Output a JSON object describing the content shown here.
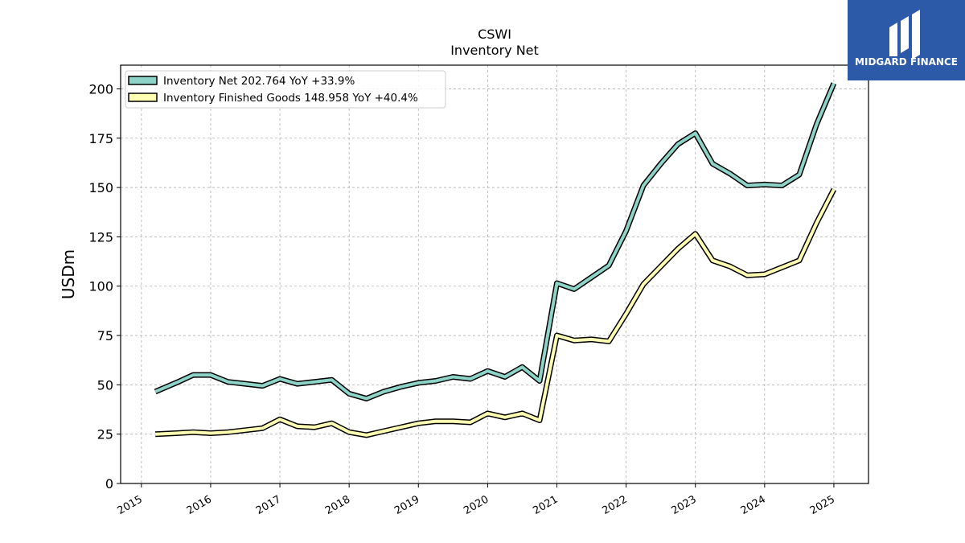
{
  "colors": {
    "net": "#8dd3c7",
    "finished": "#ffffb3",
    "outline": "#000000",
    "logo_bg": "#2c5aa8"
  },
  "logo": {
    "text": "MIDGARD FINANCE"
  },
  "chart_data": {
    "type": "line",
    "title": "CSWI",
    "subtitle": "Inventory Net",
    "ylabel": "USDm",
    "xlabel": "",
    "ylim": [
      0,
      212
    ],
    "xlim": [
      2014.7,
      2025.5
    ],
    "yticks": [
      0,
      25,
      50,
      75,
      100,
      125,
      150,
      175,
      200
    ],
    "xticks": [
      2015,
      2016,
      2017,
      2018,
      2019,
      2020,
      2021,
      2022,
      2023,
      2024,
      2025
    ],
    "grid": true,
    "legend_position": "top-left",
    "legend": [
      "Inventory Net  202.764 YoY +33.9%",
      "Inventory Finished Goods  148.958 YoY +40.4%"
    ],
    "x": [
      2015.2,
      2015.5,
      2015.75,
      2016.0,
      2016.25,
      2016.5,
      2016.75,
      2017.0,
      2017.25,
      2017.5,
      2017.75,
      2018.0,
      2018.25,
      2018.5,
      2018.75,
      2019.0,
      2019.25,
      2019.5,
      2019.75,
      2020.0,
      2020.25,
      2020.5,
      2020.75,
      2021.0,
      2021.25,
      2021.5,
      2021.75,
      2022.0,
      2022.25,
      2022.5,
      2022.75,
      2023.0,
      2023.25,
      2023.5,
      2023.75,
      2024.0,
      2024.25,
      2024.5,
      2024.75,
      2025.0
    ],
    "series": [
      {
        "name": "Inventory Net  202.764 YoY +33.9%",
        "values": [
          46.5,
          51,
          55,
          55,
          51.5,
          50.5,
          49.5,
          53,
          50.5,
          51.5,
          52.5,
          45.5,
          43,
          46.5,
          49,
          51,
          52,
          54,
          53,
          57,
          54,
          59,
          52,
          101.5,
          98.5,
          104.5,
          110.5,
          128,
          151,
          162,
          172,
          177.5,
          162,
          157,
          151,
          151.5,
          151,
          156.5,
          182,
          202.8
        ]
      },
      {
        "name": "Inventory Finished Goods  148.958 YoY +40.4%",
        "values": [
          25,
          25.5,
          26,
          25.5,
          26,
          27,
          28,
          32.5,
          29,
          28.5,
          30.5,
          26,
          24.5,
          26.5,
          28.5,
          30.5,
          31.5,
          31.5,
          31,
          35.5,
          33.5,
          35.5,
          32,
          75,
          72.5,
          73,
          72,
          86,
          101,
          110,
          119,
          126.5,
          113,
          110,
          105.5,
          106,
          109.5,
          113,
          132,
          149
        ]
      }
    ]
  }
}
